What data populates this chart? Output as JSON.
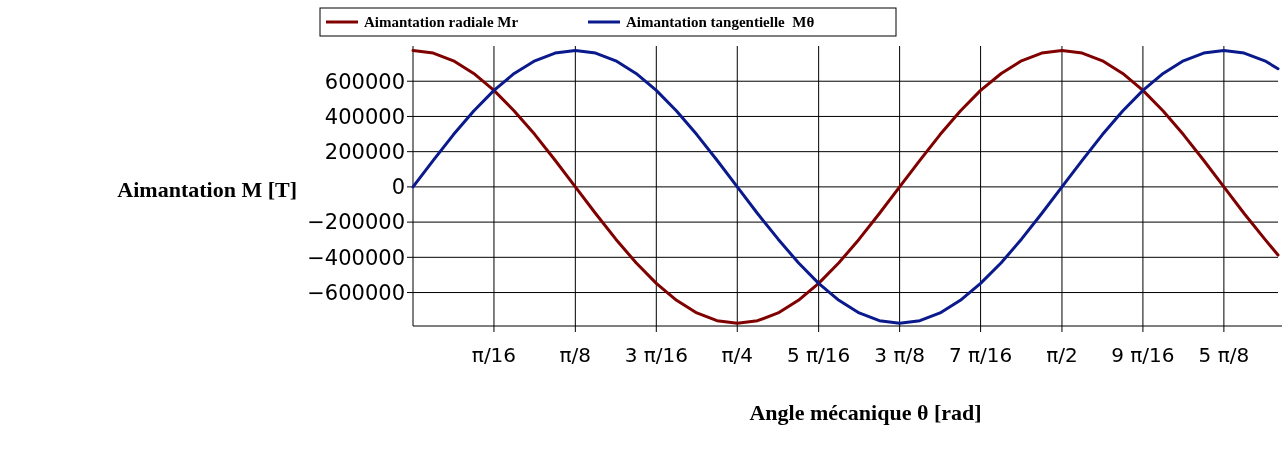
{
  "chart_data": {
    "type": "line",
    "xlabel": "Angle mécanique θ [rad]",
    "ylabel": "Aimantation M [T]",
    "xlim": [
      0,
      2.094
    ],
    "ylim": [
      -790000,
      800000
    ],
    "xticks": [
      {
        "value": 0.196,
        "label": "π/16"
      },
      {
        "value": 0.393,
        "label": "π/8"
      },
      {
        "value": 0.589,
        "label": "3 π/16"
      },
      {
        "value": 0.785,
        "label": "π/4"
      },
      {
        "value": 0.982,
        "label": "5 π/16"
      },
      {
        "value": 1.178,
        "label": "3 π/8"
      },
      {
        "value": 1.374,
        "label": "7 π/16"
      },
      {
        "value": 1.571,
        "label": "π/2"
      },
      {
        "value": 1.767,
        "label": "9 π/16"
      },
      {
        "value": 1.963,
        "label": "5 π/8"
      }
    ],
    "yticks": [
      {
        "value": -600000,
        "label": "−600000"
      },
      {
        "value": -400000,
        "label": "−400000"
      },
      {
        "value": -200000,
        "label": "−200000"
      },
      {
        "value": 0,
        "label": "0"
      },
      {
        "value": 200000,
        "label": "200000"
      },
      {
        "value": 400000,
        "label": "400000"
      },
      {
        "value": 600000,
        "label": "600000"
      }
    ],
    "grid": true,
    "legend": "top",
    "line_style": "solid",
    "marker": "none",
    "x": [
      0,
      0.049,
      0.098,
      0.147,
      0.196,
      0.245,
      0.295,
      0.344,
      0.393,
      0.442,
      0.491,
      0.54,
      0.589,
      0.638,
      0.687,
      0.736,
      0.785,
      0.834,
      0.884,
      0.933,
      0.982,
      1.031,
      1.08,
      1.129,
      1.178,
      1.227,
      1.276,
      1.325,
      1.374,
      1.424,
      1.473,
      1.522,
      1.571,
      1.62,
      1.669,
      1.718,
      1.767,
      1.816,
      1.865,
      1.914,
      1.963,
      2.012,
      2.062,
      2.094
    ],
    "series": [
      {
        "name": "Aimantation radiale Mr",
        "color": "#800000",
        "values": [
          775000,
          760000,
          716000,
          644000,
          548000,
          431000,
          297000,
          151000,
          0,
          -151000,
          -297000,
          -431000,
          -548000,
          -644000,
          -716000,
          -760000,
          -775000,
          -760000,
          -716000,
          -644000,
          -548000,
          -431000,
          -297000,
          -151000,
          0,
          151000,
          297000,
          431000,
          548000,
          644000,
          716000,
          760000,
          775000,
          760000,
          716000,
          644000,
          548000,
          431000,
          297000,
          151000,
          0,
          -151000,
          -297000,
          -387000
        ]
      },
      {
        "name": "Aimantation tangentielle  Mθ",
        "color": "#0a1a8c",
        "values": [
          0,
          151000,
          297000,
          431000,
          548000,
          644000,
          716000,
          760000,
          775000,
          760000,
          716000,
          644000,
          548000,
          431000,
          297000,
          151000,
          0,
          -151000,
          -297000,
          -431000,
          -548000,
          -644000,
          -716000,
          -760000,
          -775000,
          -760000,
          -716000,
          -644000,
          -548000,
          -431000,
          -297000,
          -151000,
          0,
          151000,
          297000,
          431000,
          548000,
          644000,
          716000,
          760000,
          775000,
          760000,
          716000,
          671000
        ]
      }
    ]
  }
}
